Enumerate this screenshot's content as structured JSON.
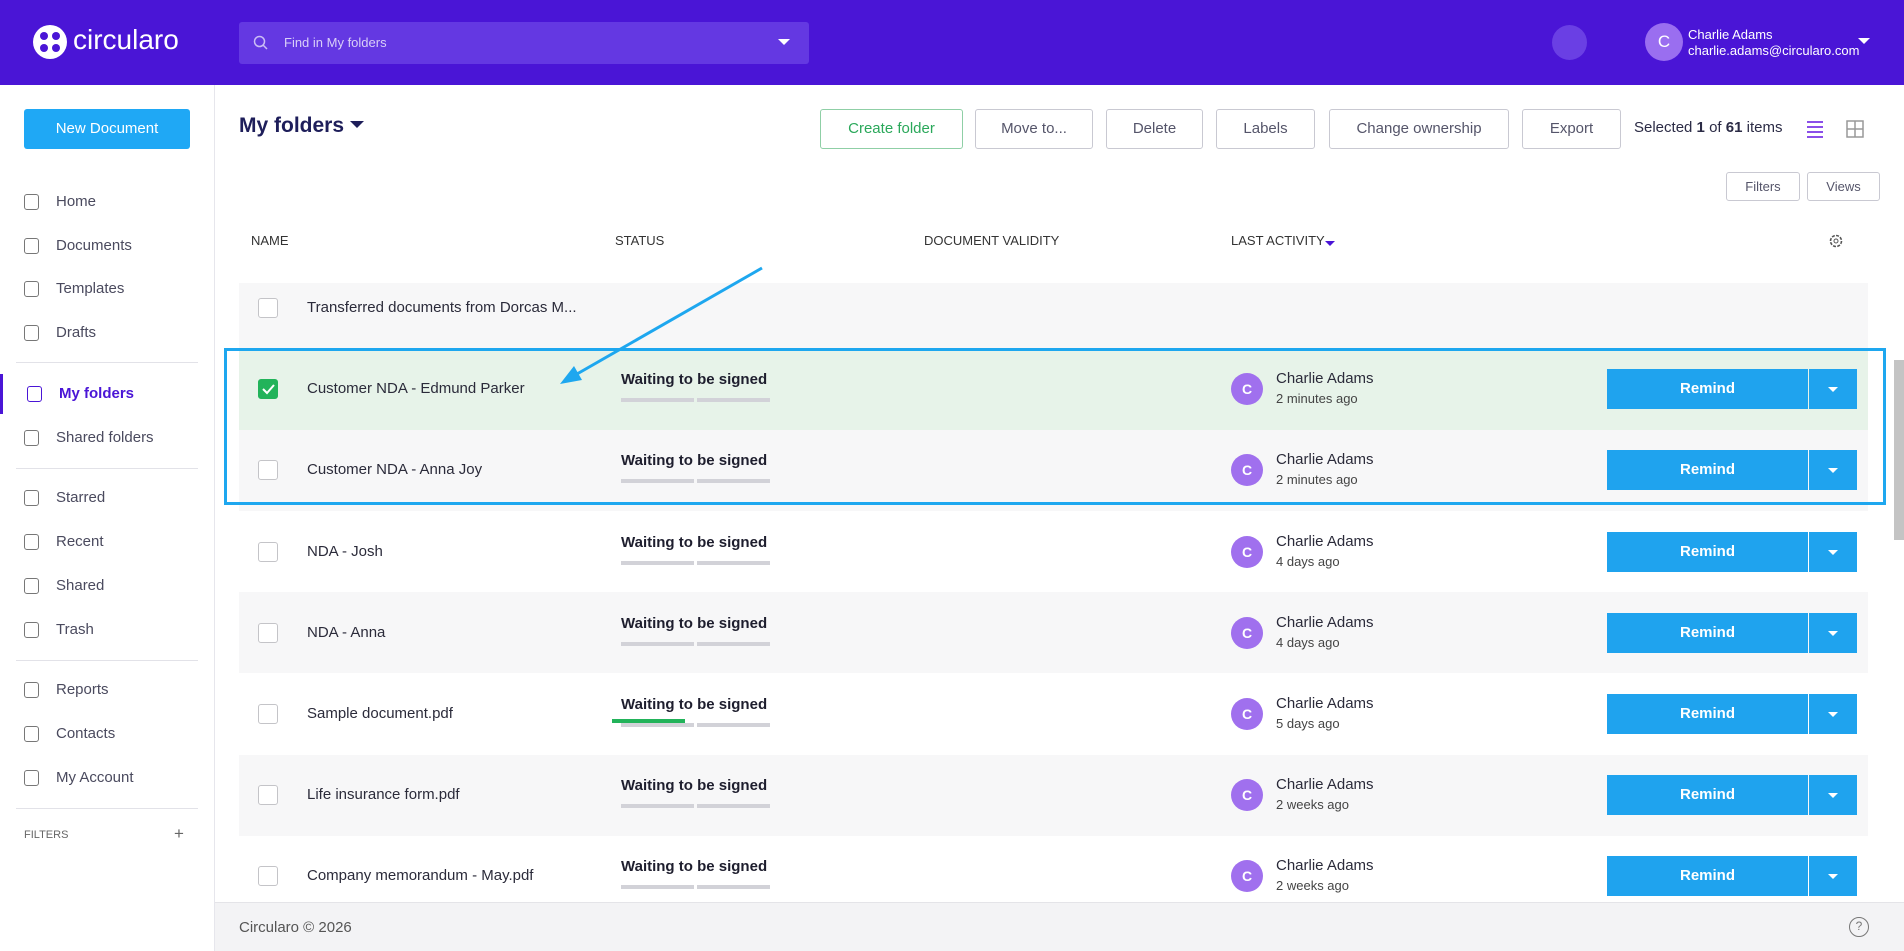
{
  "header": {
    "logo": "circularo",
    "search_placeholder": "Find in My folders",
    "user_name": "Charlie Adams",
    "user_email": "charlie.adams@circularo.com",
    "avatar": "C"
  },
  "sidebar": {
    "new_document": "New Document",
    "nav": [
      [
        "Home",
        "Documents",
        "Templates",
        "Drafts"
      ],
      [
        "My folders",
        "Shared folders"
      ],
      [
        "Starred",
        "Recent",
        "Shared",
        "Trash"
      ],
      [
        "Reports",
        "Contacts",
        "My Account"
      ]
    ],
    "filters": "FILTERS",
    "filters_add": "+"
  },
  "toolbar": {
    "title": "My folders",
    "buttons": [
      "Create folder",
      "Move to...",
      "Delete",
      "Labels",
      "Change ownership",
      "Export"
    ],
    "selection": {
      "prefix": "Selected",
      "count": 1,
      "of": "of",
      "total": 61,
      "suffix": "items"
    },
    "filters": "Filters",
    "views": "Views"
  },
  "table": {
    "columns": [
      "NAME",
      "STATUS",
      "DOCUMENT VALIDITY",
      "LAST ACTIVITY"
    ],
    "rows": [
      {
        "name": "Transferred documents from Dorcas M...",
        "status": null,
        "user": null,
        "time": null,
        "avatar": null,
        "action": null,
        "checked": false
      },
      {
        "name": "Customer NDA - Edmund Parker",
        "status": "Waiting to be signed",
        "user": "Charlie Adams",
        "time": "2 minutes ago",
        "avatar": "C",
        "action": "Remind",
        "checked": true
      },
      {
        "name": "Customer NDA - Anna Joy",
        "status": "Waiting to be signed",
        "user": "Charlie Adams",
        "time": "2 minutes ago",
        "avatar": "C",
        "action": "Remind",
        "checked": false
      },
      {
        "name": "NDA - Josh",
        "status": "Waiting to be signed",
        "user": "Charlie Adams",
        "time": "4 days ago",
        "avatar": "C",
        "action": "Remind",
        "checked": false
      },
      {
        "name": "NDA - Anna",
        "status": "Waiting to be signed",
        "user": "Charlie Adams",
        "time": "4 days ago",
        "avatar": "C",
        "action": "Remind",
        "checked": false
      },
      {
        "name": "Sample document.pdf",
        "status": "Waiting to be signed",
        "user": "Charlie Adams",
        "time": "5 days ago",
        "avatar": "C",
        "action": "Remind",
        "checked": false
      },
      {
        "name": "Life insurance form.pdf",
        "status": "Waiting to be signed",
        "user": "Charlie Adams",
        "time": "2 weeks ago",
        "avatar": "C",
        "action": "Remind",
        "checked": false
      },
      {
        "name": "Company memorandum - May.pdf",
        "status": "Waiting to be signed",
        "user": "Charlie Adams",
        "time": "2 weeks ago",
        "avatar": "C",
        "action": "Remind",
        "checked": false
      }
    ]
  },
  "footer": {
    "text": "Circularo © 2026",
    "help": "?"
  }
}
